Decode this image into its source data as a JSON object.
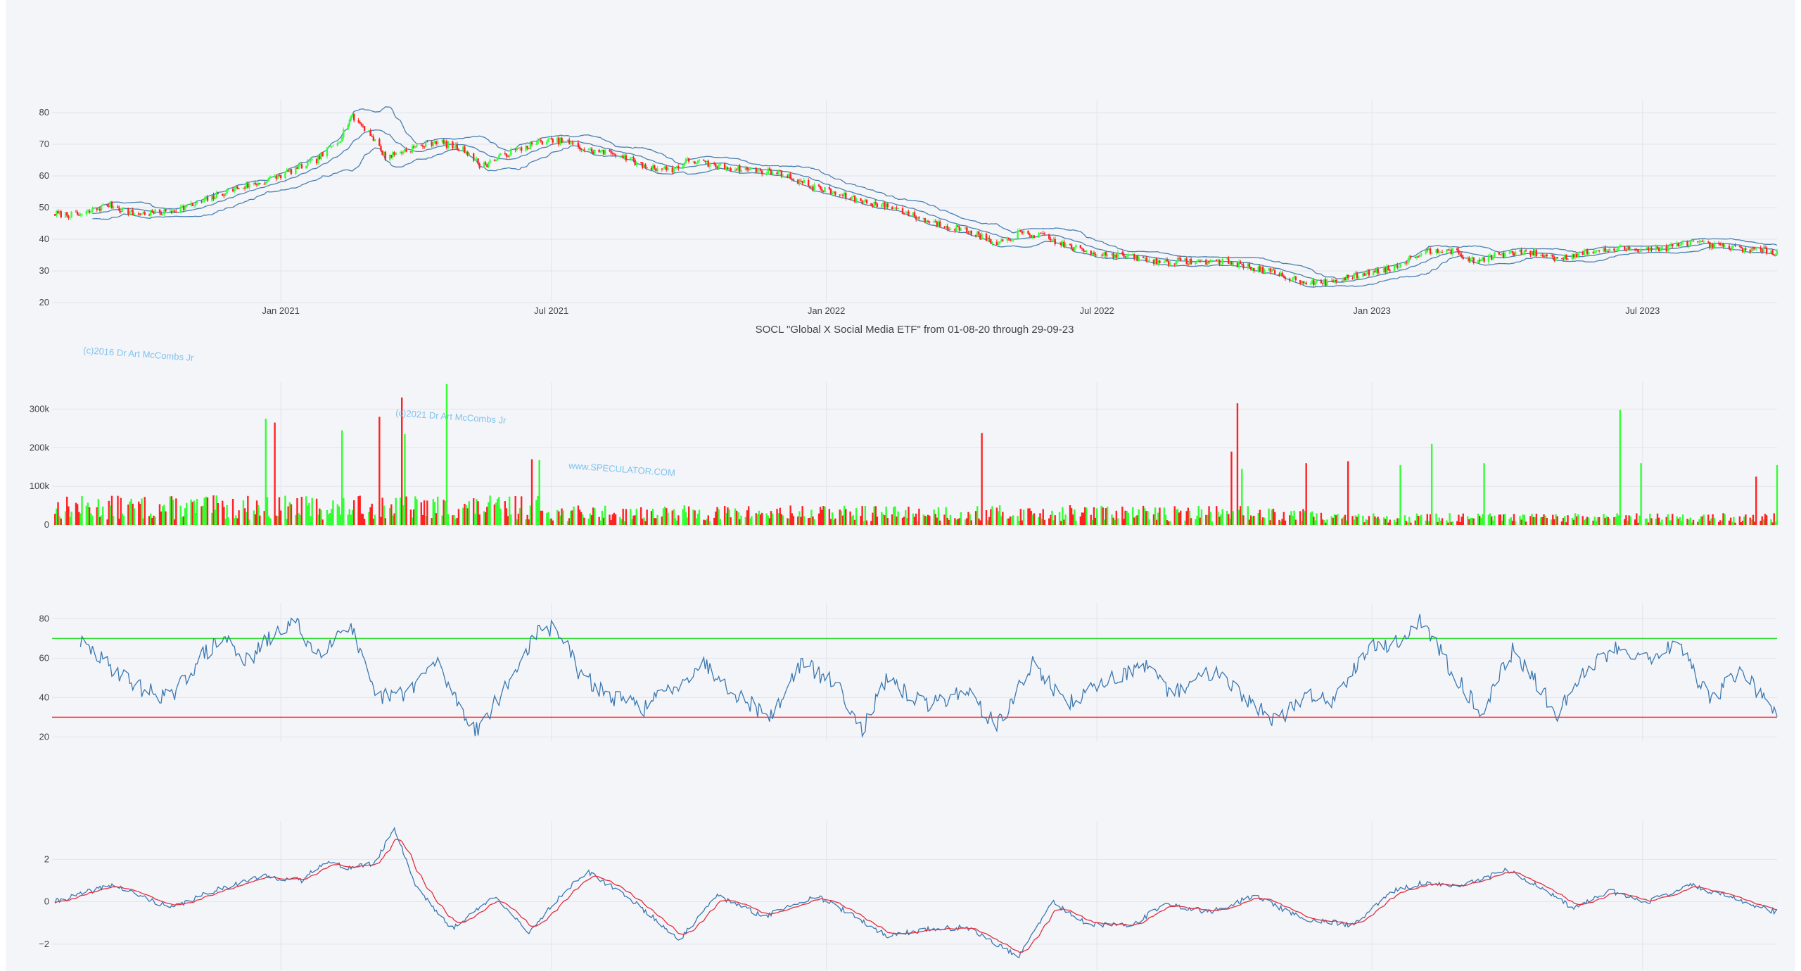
{
  "chart_data": [
    {
      "type": "candlestick",
      "title": "SOCL \"Global X Social Media ETF\" from 01-08-20 through 29-09-23",
      "ylim": [
        20,
        84
      ],
      "yticks": [
        20,
        30,
        40,
        50,
        60,
        70,
        80
      ],
      "xticks": [
        "Jan 2021",
        "Jul 2021",
        "Jan 2022",
        "Jul 2022",
        "Jan 2023",
        "Jul 2023"
      ],
      "date_range": [
        "2020-08-01",
        "2023-09-29"
      ],
      "overlays": [
        "bollinger_upper",
        "bollinger_middle",
        "bollinger_lower"
      ],
      "grid": true,
      "up_color": "#33ff33",
      "down_color": "#ff2222",
      "band_color": "#4a7fb0",
      "close_anchors": [
        [
          "2020-08-03",
          48
        ],
        [
          "2020-08-20",
          47.5
        ],
        [
          "2020-09-08",
          51
        ],
        [
          "2020-09-25",
          48
        ],
        [
          "2020-10-15",
          48.5
        ],
        [
          "2020-11-05",
          51
        ],
        [
          "2020-12-01",
          56
        ],
        [
          "2020-12-20",
          58
        ],
        [
          "2021-01-05",
          61
        ],
        [
          "2021-01-25",
          65
        ],
        [
          "2021-02-10",
          72
        ],
        [
          "2021-02-17",
          79
        ],
        [
          "2021-03-01",
          74
        ],
        [
          "2021-03-12",
          66
        ],
        [
          "2021-03-25",
          68
        ],
        [
          "2021-04-15",
          71
        ],
        [
          "2021-05-05",
          68
        ],
        [
          "2021-05-15",
          63
        ],
        [
          "2021-06-01",
          67
        ],
        [
          "2021-06-25",
          71
        ],
        [
          "2021-07-10",
          71
        ],
        [
          "2021-07-25",
          68
        ],
        [
          "2021-08-15",
          67
        ],
        [
          "2021-09-01",
          63
        ],
        [
          "2021-09-20",
          62
        ],
        [
          "2021-10-01",
          65
        ],
        [
          "2021-10-20",
          63
        ],
        [
          "2021-11-10",
          62
        ],
        [
          "2021-12-01",
          61
        ],
        [
          "2021-12-20",
          57
        ],
        [
          "2022-01-10",
          54
        ],
        [
          "2022-01-25",
          52
        ],
        [
          "2022-02-15",
          50
        ],
        [
          "2022-03-08",
          46
        ],
        [
          "2022-03-25",
          44
        ],
        [
          "2022-04-10",
          42
        ],
        [
          "2022-04-25",
          38
        ],
        [
          "2022-05-10",
          42
        ],
        [
          "2022-05-25",
          41
        ],
        [
          "2022-06-10",
          38
        ],
        [
          "2022-06-25",
          36
        ],
        [
          "2022-07-15",
          35
        ],
        [
          "2022-08-10",
          33
        ],
        [
          "2022-09-01",
          33
        ],
        [
          "2022-09-25",
          33
        ],
        [
          "2022-10-15",
          31
        ],
        [
          "2022-11-05",
          28
        ],
        [
          "2022-11-25",
          26
        ],
        [
          "2022-12-10",
          27
        ],
        [
          "2022-12-25",
          29
        ],
        [
          "2023-01-15",
          31
        ],
        [
          "2023-02-03",
          36
        ],
        [
          "2023-02-20",
          37
        ],
        [
          "2023-03-10",
          33
        ],
        [
          "2023-03-25",
          35
        ],
        [
          "2023-04-15",
          36
        ],
        [
          "2023-05-05",
          34
        ],
        [
          "2023-05-25",
          36
        ],
        [
          "2023-06-20",
          37
        ],
        [
          "2023-07-15",
          37
        ],
        [
          "2023-08-01",
          39
        ],
        [
          "2023-08-15",
          38
        ],
        [
          "2023-09-05",
          37
        ],
        [
          "2023-09-29",
          36
        ]
      ]
    },
    {
      "type": "bar",
      "name": "volume",
      "ylim": [
        0,
        370000
      ],
      "yticks": [
        0,
        100000,
        200000,
        300000
      ],
      "yticklabels": [
        "0",
        "100k",
        "200k",
        "300k"
      ],
      "grid": true,
      "up_color": "#33ff33",
      "down_color": "#ff2222",
      "spikes": [
        [
          "2020-12-22",
          275000,
          "up"
        ],
        [
          "2020-12-28",
          265000,
          "down"
        ],
        [
          "2021-02-11",
          245000,
          "up"
        ],
        [
          "2021-03-08",
          280000,
          "down"
        ],
        [
          "2021-03-23",
          330000,
          "down"
        ],
        [
          "2021-03-25",
          235000,
          "up"
        ],
        [
          "2021-04-22",
          365000,
          "up"
        ],
        [
          "2021-06-23",
          168000,
          "up"
        ],
        [
          "2021-06-18",
          170000,
          "down"
        ],
        [
          "2022-04-15",
          238000,
          "down"
        ],
        [
          "2022-10-03",
          315000,
          "down"
        ],
        [
          "2022-09-29",
          190000,
          "down"
        ],
        [
          "2022-10-06",
          145000,
          "up"
        ],
        [
          "2022-11-18",
          160000,
          "down"
        ],
        [
          "2022-12-16",
          165000,
          "down"
        ],
        [
          "2023-01-20",
          155000,
          "up"
        ],
        [
          "2023-02-10",
          210000,
          "up"
        ],
        [
          "2023-03-17",
          160000,
          "up"
        ],
        [
          "2023-06-16",
          298000,
          "up"
        ],
        [
          "2023-06-30",
          160000,
          "up"
        ],
        [
          "2023-09-15",
          125000,
          "down"
        ],
        [
          "2023-09-29",
          155000,
          "up"
        ]
      ]
    },
    {
      "type": "line",
      "name": "RSI",
      "ylim": [
        18,
        88
      ],
      "yticks": [
        20,
        40,
        60,
        80
      ],
      "hlines": [
        {
          "value": 70,
          "color": "#33dd33"
        },
        {
          "value": 30,
          "color": "#ff3333"
        }
      ],
      "line_color": "#3a78b0",
      "anchors": [
        [
          "2020-08-20",
          68
        ],
        [
          "2020-09-10",
          55
        ],
        [
          "2020-10-01",
          44
        ],
        [
          "2020-10-20",
          40
        ],
        [
          "2020-11-10",
          62
        ],
        [
          "2020-11-25",
          70
        ],
        [
          "2020-12-10",
          58
        ],
        [
          "2020-12-20",
          67
        ],
        [
          "2021-01-10",
          79
        ],
        [
          "2021-01-25",
          62
        ],
        [
          "2021-02-16",
          78
        ],
        [
          "2021-03-05",
          40
        ],
        [
          "2021-03-25",
          42
        ],
        [
          "2021-04-15",
          58
        ],
        [
          "2021-05-05",
          30
        ],
        [
          "2021-05-12",
          24
        ],
        [
          "2021-06-01",
          45
        ],
        [
          "2021-06-20",
          72
        ],
        [
          "2021-07-05",
          76
        ],
        [
          "2021-07-20",
          52
        ],
        [
          "2021-08-10",
          40
        ],
        [
          "2021-09-01",
          35
        ],
        [
          "2021-09-25",
          48
        ],
        [
          "2021-10-10",
          58
        ],
        [
          "2021-11-05",
          40
        ],
        [
          "2021-11-25",
          30
        ],
        [
          "2021-12-15",
          58
        ],
        [
          "2022-01-10",
          45
        ],
        [
          "2022-01-25",
          24
        ],
        [
          "2022-02-10",
          48
        ],
        [
          "2022-03-10",
          36
        ],
        [
          "2022-04-05",
          44
        ],
        [
          "2022-04-25",
          25
        ],
        [
          "2022-05-20",
          58
        ],
        [
          "2022-06-10",
          36
        ],
        [
          "2022-07-05",
          48
        ],
        [
          "2022-08-01",
          56
        ],
        [
          "2022-08-20",
          42
        ],
        [
          "2022-09-20",
          55
        ],
        [
          "2022-10-10",
          38
        ],
        [
          "2022-10-30",
          28
        ],
        [
          "2022-11-20",
          42
        ],
        [
          "2022-12-05",
          38
        ],
        [
          "2022-12-28",
          65
        ],
        [
          "2023-01-20",
          68
        ],
        [
          "2023-02-02",
          80
        ],
        [
          "2023-02-20",
          58
        ],
        [
          "2023-03-15",
          32
        ],
        [
          "2023-04-05",
          64
        ],
        [
          "2023-04-20",
          48
        ],
        [
          "2023-05-05",
          32
        ],
        [
          "2023-05-25",
          55
        ],
        [
          "2023-06-15",
          66
        ],
        [
          "2023-07-05",
          60
        ],
        [
          "2023-07-25",
          68
        ],
        [
          "2023-08-15",
          38
        ],
        [
          "2023-09-05",
          55
        ],
        [
          "2023-09-25",
          33
        ]
      ]
    },
    {
      "type": "line",
      "name": "MACD",
      "ylim": [
        -3.2,
        3.8
      ],
      "yticks": [
        -2,
        0,
        2
      ],
      "yticklabels": [
        "−2",
        "0",
        "2"
      ],
      "series_colors": [
        "#3a78b0",
        "#e03040"
      ],
      "anchors": [
        [
          "2020-08-03",
          0
        ],
        [
          "2020-09-10",
          0.8
        ],
        [
          "2020-10-20",
          -0.3
        ],
        [
          "2020-11-20",
          0.6
        ],
        [
          "2020-12-20",
          1.2
        ],
        [
          "2021-01-15",
          1.0
        ],
        [
          "2021-01-30",
          1.9
        ],
        [
          "2021-02-15",
          1.6
        ],
        [
          "2021-03-05",
          1.8
        ],
        [
          "2021-03-18",
          3.5
        ],
        [
          "2021-04-01",
          0.8
        ],
        [
          "2021-04-25",
          -1.3
        ],
        [
          "2021-05-25",
          0.3
        ],
        [
          "2021-06-15",
          -1.5
        ],
        [
          "2021-07-10",
          0.5
        ],
        [
          "2021-07-25",
          1.4
        ],
        [
          "2021-08-20",
          0.3
        ],
        [
          "2021-09-25",
          -1.8
        ],
        [
          "2021-10-20",
          0.3
        ],
        [
          "2021-11-20",
          -0.7
        ],
        [
          "2021-12-25",
          0.3
        ],
        [
          "2022-01-15",
          -0.5
        ],
        [
          "2022-02-10",
          -1.6
        ],
        [
          "2022-03-10",
          -1.3
        ],
        [
          "2022-04-05",
          -1.2
        ],
        [
          "2022-05-10",
          -2.6
        ],
        [
          "2022-06-01",
          0.0
        ],
        [
          "2022-06-25",
          -1.1
        ],
        [
          "2022-07-25",
          -1.1
        ],
        [
          "2022-08-15",
          -0.1
        ],
        [
          "2022-09-15",
          -0.5
        ],
        [
          "2022-10-15",
          0.3
        ],
        [
          "2022-11-15",
          -0.8
        ],
        [
          "2022-12-20",
          -1.1
        ],
        [
          "2023-01-15",
          0.5
        ],
        [
          "2023-02-05",
          0.9
        ],
        [
          "2023-03-01",
          0.7
        ],
        [
          "2023-04-01",
          1.5
        ],
        [
          "2023-04-20",
          0.8
        ],
        [
          "2023-05-15",
          -0.3
        ],
        [
          "2023-06-10",
          0.5
        ],
        [
          "2023-07-05",
          0.0
        ],
        [
          "2023-08-01",
          0.8
        ],
        [
          "2023-08-25",
          0.3
        ],
        [
          "2023-09-10",
          -0.1
        ],
        [
          "2023-09-29",
          -0.5
        ]
      ]
    }
  ],
  "watermarks": {
    "copyright_2016": "(c)2016 Dr Art McCombs Jr",
    "copyright_2021": "(c)2021 Dr Art McCombs Jr",
    "website": "www.SPECULATOR.COM"
  }
}
